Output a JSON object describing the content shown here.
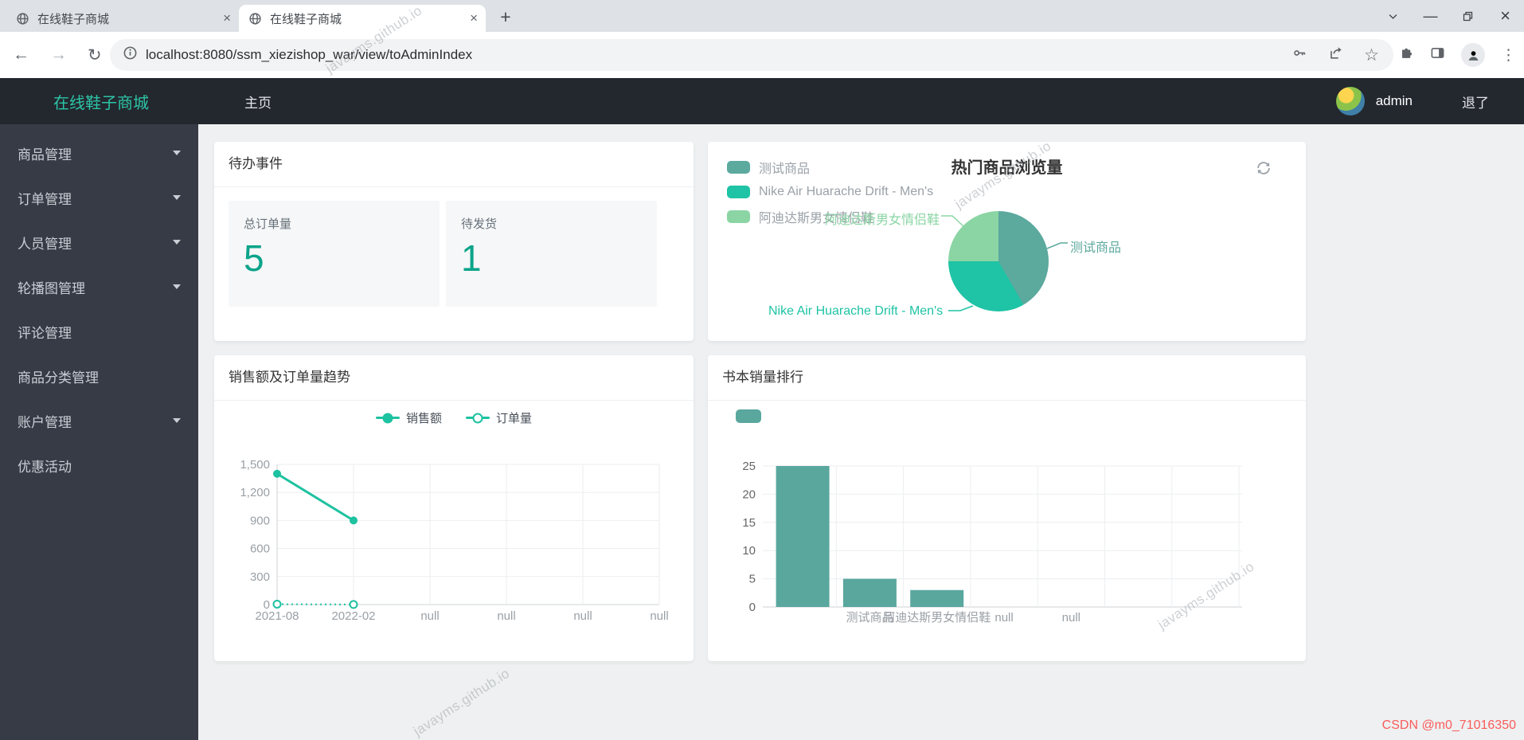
{
  "browser": {
    "tabs": [
      {
        "title": "在线鞋子商城"
      },
      {
        "title": "在线鞋子商城"
      }
    ],
    "url": "localhost:8080/ssm_xiezishop_war/view/toAdminIndex"
  },
  "icons": {
    "back": "←",
    "forward": "→",
    "reload": "↻",
    "star": "☆",
    "kebab": "⋮",
    "plus": "+",
    "close": "×",
    "minimize": "—",
    "close_window": "×"
  },
  "navbar": {
    "brand": "在线鞋子商城",
    "home": "主页",
    "user": "admin",
    "logout": "退了"
  },
  "sidebar": {
    "items": [
      {
        "label": "商品管理",
        "arrow": true
      },
      {
        "label": "订单管理",
        "arrow": true
      },
      {
        "label": "人员管理",
        "arrow": true
      },
      {
        "label": "轮播图管理",
        "arrow": true
      },
      {
        "label": "评论管理",
        "arrow": false
      },
      {
        "label": "商品分类管理",
        "arrow": false
      },
      {
        "label": "账户管理",
        "arrow": true
      },
      {
        "label": "优惠活动",
        "arrow": false
      }
    ]
  },
  "cards": {
    "todo": {
      "title": "待办事件",
      "stats": [
        {
          "label": "总订单量",
          "value": "5"
        },
        {
          "label": "待发货",
          "value": "1"
        }
      ]
    },
    "pie": {
      "title": "热门商品浏览量"
    },
    "trend": {
      "title": "销售额及订单量趋势"
    },
    "rank": {
      "title": "书本销量排行"
    }
  },
  "chart_data": [
    {
      "type": "pie",
      "title": "热门商品浏览量",
      "legend_position": "top-left",
      "slices": [
        {
          "name": "测试商品",
          "value": 5,
          "color": "#5ca99e"
        },
        {
          "name": "Nike Air Huarache Drift - Men's",
          "value": 4,
          "color": "#1fc3a5"
        },
        {
          "name": "阿迪达斯男女情侣鞋",
          "value": 3,
          "color": "#8bd5a4"
        }
      ]
    },
    {
      "type": "line",
      "title": "销售额及订单量趋势",
      "legend_position": "top-center",
      "x": [
        "2021-08",
        "2022-02",
        "null",
        "null",
        "null",
        "null"
      ],
      "ylim": [
        0,
        1500
      ],
      "yticks": [
        "1,500",
        "1,200",
        "900",
        "600",
        "300",
        "0"
      ],
      "grid": true,
      "series": [
        {
          "name": "销售额",
          "color": "#1dc2a0",
          "line": "solid",
          "marker": "filled",
          "values": [
            1400,
            900,
            null,
            null,
            null,
            null
          ]
        },
        {
          "name": "订单量",
          "color": "#1dc2a0",
          "line": "dotted",
          "marker": "hollow",
          "values": [
            4,
            1,
            null,
            null,
            null,
            null
          ]
        }
      ]
    },
    {
      "type": "bar",
      "title": "书本销量排行",
      "categories": [
        "",
        "测试商品",
        "阿迪达斯男女情侣鞋",
        "null",
        "null"
      ],
      "values": [
        25,
        5,
        3,
        null,
        null
      ],
      "ylim": [
        0,
        25
      ],
      "yticks": [
        "25",
        "20",
        "15",
        "10",
        "5",
        "0"
      ],
      "grid": true,
      "color": "#5aa79e"
    }
  ],
  "watermark": {
    "text": "javayms.github.io",
    "csdn": "CSDN @m0_71016350"
  }
}
